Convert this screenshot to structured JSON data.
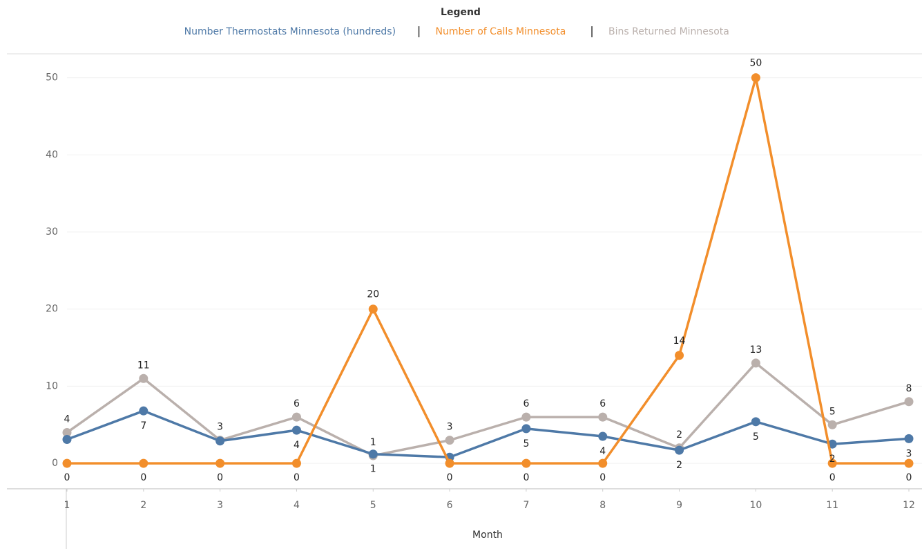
{
  "chart_data": {
    "type": "line",
    "legend_title": "Legend",
    "x_label": "Month",
    "x": [
      1,
      2,
      3,
      4,
      5,
      6,
      7,
      8,
      9,
      10,
      11,
      12
    ],
    "xlim": [
      1,
      12.17
    ],
    "xticks": [
      1,
      2,
      3,
      4,
      5,
      6,
      7,
      8,
      9,
      10,
      11,
      12
    ],
    "ylim": [
      -3.3,
      53.1
    ],
    "yticks": [
      0,
      10,
      20,
      30,
      40,
      50
    ],
    "grid": true,
    "legend_position": "top",
    "series": [
      {
        "name": "Number Thermostats Minnesota (hundreds)",
        "color": "#4e79a7",
        "values": [
          3.1,
          6.8,
          2.9,
          4.3,
          1.2,
          0.8,
          4.5,
          3.5,
          1.7,
          5.4,
          2.5,
          3.2
        ],
        "value_labels": [
          null,
          "7",
          null,
          "4",
          "1",
          null,
          "5",
          "4",
          "2",
          "5",
          "2",
          "3"
        ]
      },
      {
        "name": "Number of Calls Minnesota",
        "color": "#f28e2b",
        "values": [
          0,
          0,
          0,
          0,
          20,
          0,
          0,
          0,
          14,
          50,
          0,
          0
        ]
      },
      {
        "name": "Bins Returned Minnesota",
        "color": "#bab0ac",
        "values": [
          4,
          11,
          3,
          6,
          1,
          3,
          6,
          6,
          2,
          13,
          5,
          8
        ]
      }
    ]
  }
}
